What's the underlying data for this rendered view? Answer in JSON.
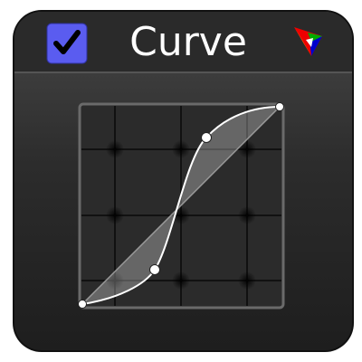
{
  "header": {
    "title": "Curve"
  }
}
